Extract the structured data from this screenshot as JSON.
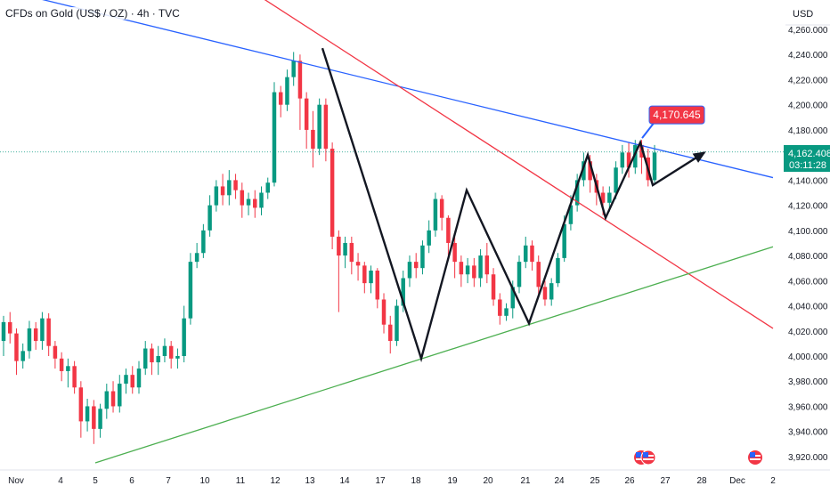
{
  "header": {
    "symbol_title": "CFDs on Gold (US$ / OZ) · 4h · TVC"
  },
  "price_axis": {
    "currency": "USD",
    "ticks": [
      "4,260.000",
      "4,240.000",
      "4,220.000",
      "4,200.000",
      "4,180.000",
      "4,140.000",
      "4,120.000",
      "4,100.000",
      "4,080.000",
      "4,060.000",
      "4,040.000",
      "4,020.000",
      "4,000.000",
      "3,980.000",
      "3,960.000",
      "3,940.000",
      "3,920.000"
    ],
    "current_price_label": "4,162.408",
    "countdown_label": "03:11:28"
  },
  "time_axis": {
    "labels": [
      "Nov",
      "4",
      "5",
      "6",
      "7",
      "10",
      "11",
      "12",
      "13",
      "14",
      "17",
      "18",
      "19",
      "20",
      "21",
      "24",
      "25",
      "26",
      "27",
      "28",
      "Dec",
      "2"
    ]
  },
  "annotation": {
    "target_label": "4,170.645"
  },
  "colors": {
    "up": "#089981",
    "down": "#f23645",
    "blue_trend": "#2962ff",
    "red_trend": "#f23645",
    "green_trend": "#4caf50",
    "callout": "#f23645"
  },
  "chart_data": {
    "type": "candlestick",
    "title": "CFDs on Gold (US$ / OZ) · 4h · TVC",
    "y_unit": "USD",
    "ylim": [
      3915,
      4270
    ],
    "grid": false,
    "current_price": 4162.408,
    "target_price": 4170.645,
    "candles": [
      [
        4012,
        4027,
        4000,
        4032
      ],
      [
        4027,
        4018,
        4010,
        4035
      ],
      [
        4018,
        3996,
        3985,
        4022
      ],
      [
        3996,
        4004,
        3990,
        4010
      ],
      [
        4004,
        4022,
        3998,
        4028
      ],
      [
        4022,
        4012,
        4005,
        4027
      ],
      [
        4012,
        4030,
        4005,
        4035
      ],
      [
        4030,
        4008,
        4000,
        4034
      ],
      [
        4008,
        3998,
        3990,
        4012
      ],
      [
        3998,
        3988,
        3980,
        4003
      ],
      [
        3988,
        3992,
        3975,
        3998
      ],
      [
        3992,
        3975,
        3970,
        3996
      ],
      [
        3975,
        3948,
        3935,
        3980
      ],
      [
        3948,
        3960,
        3940,
        3966
      ],
      [
        3960,
        3942,
        3930,
        3965
      ],
      [
        3942,
        3958,
        3935,
        3962
      ],
      [
        3958,
        3972,
        3950,
        3978
      ],
      [
        3972,
        3960,
        3955,
        3980
      ],
      [
        3960,
        3978,
        3955,
        3985
      ],
      [
        3978,
        3985,
        3970,
        3990
      ],
      [
        3985,
        3975,
        3970,
        3992
      ],
      [
        3975,
        3990,
        3970,
        3996
      ],
      [
        3990,
        4006,
        3985,
        4012
      ],
      [
        4006,
        3995,
        3985,
        4010
      ],
      [
        3995,
        4000,
        3985,
        4008
      ],
      [
        4000,
        4008,
        3995,
        4014
      ],
      [
        4008,
        3998,
        3990,
        4012
      ],
      [
        3998,
        4000,
        3990,
        4006
      ],
      [
        4000,
        4030,
        3995,
        4040
      ],
      [
        4030,
        4075,
        4025,
        4082
      ],
      [
        4075,
        4082,
        4070,
        4090
      ],
      [
        4082,
        4100,
        4078,
        4105
      ],
      [
        4100,
        4120,
        4095,
        4128
      ],
      [
        4120,
        4135,
        4115,
        4140
      ],
      [
        4135,
        4128,
        4120,
        4145
      ],
      [
        4128,
        4140,
        4120,
        4148
      ],
      [
        4140,
        4132,
        4125,
        4145
      ],
      [
        4132,
        4120,
        4110,
        4138
      ],
      [
        4120,
        4125,
        4112,
        4130
      ],
      [
        4125,
        4118,
        4110,
        4132
      ],
      [
        4118,
        4130,
        4112,
        4135
      ],
      [
        4130,
        4138,
        4125,
        4142
      ],
      [
        4138,
        4210,
        4135,
        4218
      ],
      [
        4210,
        4200,
        4190,
        4215
      ],
      [
        4200,
        4222,
        4195,
        4228
      ],
      [
        4222,
        4235,
        4215,
        4242
      ],
      [
        4235,
        4205,
        4180,
        4240
      ],
      [
        4205,
        4180,
        4165,
        4210
      ],
      [
        4180,
        4165,
        4150,
        4195
      ],
      [
        4165,
        4200,
        4160,
        4205
      ],
      [
        4200,
        4165,
        4155,
        4205
      ],
      [
        4165,
        4095,
        4085,
        4170
      ],
      [
        4095,
        4080,
        4035,
        4100
      ],
      [
        4080,
        4090,
        4070,
        4095
      ],
      [
        4090,
        4075,
        4065,
        4095
      ],
      [
        4075,
        4072,
        4060,
        4082
      ],
      [
        4072,
        4058,
        4050,
        4075
      ],
      [
        4058,
        4068,
        4050,
        4072
      ],
      [
        4068,
        4045,
        4038,
        4070
      ],
      [
        4045,
        4025,
        4018,
        4050
      ],
      [
        4025,
        4012,
        4002,
        4032
      ],
      [
        4012,
        4040,
        4008,
        4045
      ],
      [
        4040,
        4062,
        4035,
        4068
      ],
      [
        4062,
        4075,
        4055,
        4080
      ],
      [
        4075,
        4070,
        4062,
        4082
      ],
      [
        4070,
        4088,
        4065,
        4092
      ],
      [
        4088,
        4100,
        4082,
        4108
      ],
      [
        4100,
        4125,
        4095,
        4130
      ],
      [
        4125,
        4110,
        4100,
        4128
      ],
      [
        4110,
        4090,
        4080,
        4112
      ],
      [
        4090,
        4075,
        4062,
        4095
      ],
      [
        4075,
        4065,
        4055,
        4080
      ],
      [
        4065,
        4072,
        4058,
        4078
      ],
      [
        4072,
        4062,
        4055,
        4078
      ],
      [
        4062,
        4080,
        4055,
        4085
      ],
      [
        4080,
        4065,
        4058,
        4090
      ],
      [
        4065,
        4045,
        4040,
        4070
      ],
      [
        4045,
        4032,
        4025,
        4050
      ],
      [
        4032,
        4038,
        4028,
        4042
      ],
      [
        4038,
        4055,
        4030,
        4060
      ],
      [
        4055,
        4075,
        4050,
        4080
      ],
      [
        4075,
        4088,
        4070,
        4095
      ],
      [
        4088,
        4075,
        4068,
        4092
      ],
      [
        4075,
        4055,
        4048,
        4080
      ],
      [
        4055,
        4045,
        4040,
        4060
      ],
      [
        4045,
        4058,
        4040,
        4062
      ],
      [
        4058,
        4078,
        4055,
        4082
      ],
      [
        4078,
        4105,
        4075,
        4112
      ],
      [
        4105,
        4120,
        4100,
        4128
      ],
      [
        4120,
        4140,
        4115,
        4145
      ],
      [
        4140,
        4155,
        4135,
        4162
      ],
      [
        4155,
        4140,
        4130,
        4160
      ],
      [
        4140,
        4130,
        4120,
        4145
      ],
      [
        4130,
        4122,
        4112,
        4135
      ],
      [
        4122,
        4130,
        4115,
        4135
      ],
      [
        4130,
        4150,
        4125,
        4155
      ],
      [
        4150,
        4162,
        4145,
        4168
      ],
      [
        4162,
        4150,
        4142,
        4170
      ],
      [
        4150,
        4168,
        4145,
        4172
      ],
      [
        4168,
        4158,
        4145,
        4172
      ],
      [
        4158,
        4140,
        4135,
        4165
      ],
      [
        4140,
        4162,
        4138,
        4168
      ]
    ],
    "zigzag_path": [
      [
        "13",
        4245
      ],
      [
        "18",
        3998
      ],
      [
        "19",
        4132
      ],
      [
        "21",
        4026
      ],
      [
        "24",
        4160
      ],
      [
        "25",
        4110
      ],
      [
        "26",
        4170
      ],
      [
        "26",
        4136
      ],
      [
        "27",
        4162
      ]
    ],
    "trendlines": [
      {
        "color": "blue",
        "from": [
          "Nov",
          4292
        ],
        "to": [
          "2",
          4142
        ]
      },
      {
        "color": "red",
        "from": [
          "Nov",
          4420
        ],
        "to": [
          "2",
          4022
        ]
      },
      {
        "color": "green",
        "from": [
          "5",
          3915
        ],
        "to": [
          "2",
          4087
        ]
      }
    ]
  }
}
